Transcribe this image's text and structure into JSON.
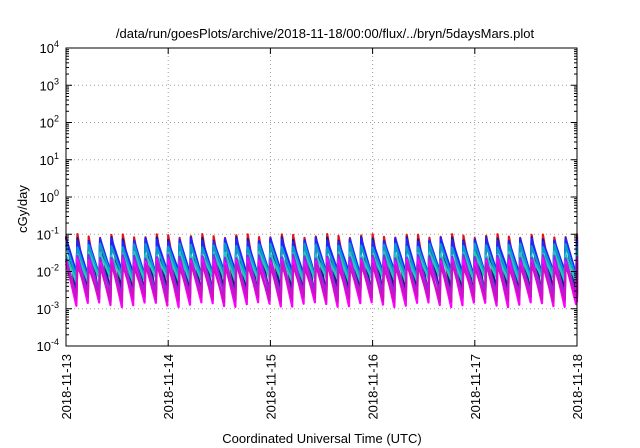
{
  "chart_data": {
    "type": "line",
    "title": "/data/run/goesPlots/archive/2018-11-18/00:00/flux/../bryn/5daysMars.plot",
    "xlabel": "Coordinated Universal Time (UTC)",
    "ylabel": "cGy/day",
    "xlim": [
      "2018-11-13T00:00",
      "2018-11-18T00:00"
    ],
    "x_tick_labels": [
      "2018-11-13",
      "2018-11-14",
      "2018-11-15",
      "2018-11-16",
      "2018-11-17",
      "2018-11-18"
    ],
    "yscale": "log",
    "ylim": [
      0.0001,
      10000
    ],
    "y_ticks": [
      {
        "base": "10",
        "exp": "-4"
      },
      {
        "base": "10",
        "exp": "-3"
      },
      {
        "base": "10",
        "exp": "-2"
      },
      {
        "base": "10",
        "exp": "-1"
      },
      {
        "base": "10",
        "exp": "0"
      },
      {
        "base": "10",
        "exp": "1"
      },
      {
        "base": "10",
        "exp": "2"
      },
      {
        "base": "10",
        "exp": "3"
      },
      {
        "base": "10",
        "exp": "4"
      }
    ],
    "grid": true,
    "sawtooth": {
      "cycles_per_day": 9,
      "peak": 0.075,
      "trough": 0.006,
      "note_units": "cGy/day"
    },
    "series": [
      {
        "color": "#e8141c",
        "peak": 0.09,
        "trough": 0.0022
      },
      {
        "color": "#1a1a80",
        "peak": 0.075,
        "trough": 0.0028
      },
      {
        "color": "#2323ff",
        "peak": 0.07,
        "trough": 0.009
      },
      {
        "color": "#0a9ad0",
        "peak": 0.05,
        "trough": 0.0075
      },
      {
        "color": "#20c8c0",
        "peak": 0.03,
        "trough": 0.006
      },
      {
        "color": "#8a2be2",
        "peak": 0.025,
        "trough": 0.0025
      },
      {
        "color": "#ff00ff",
        "peak": 0.02,
        "trough": 0.0013
      },
      {
        "color": "#d010c8",
        "peak": 0.015,
        "trough": 0.0018
      }
    ]
  }
}
